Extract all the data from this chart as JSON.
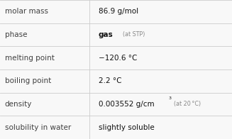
{
  "rows": [
    {
      "label": "molar mass",
      "type": "simple",
      "value": "86.9 g/mol"
    },
    {
      "label": "phase",
      "type": "phase",
      "value": "gas",
      "note": "(at STP)"
    },
    {
      "label": "melting point",
      "type": "simple",
      "value": "−120.6 °C"
    },
    {
      "label": "boiling point",
      "type": "simple",
      "value": "2.2 °C"
    },
    {
      "label": "density",
      "type": "density",
      "value": "0.003552 g/cm",
      "note": "(at 20 °C)"
    },
    {
      "label": "solubility in water",
      "type": "simple",
      "value": "slightly soluble"
    }
  ],
  "bg_color": "#f8f8f8",
  "line_color": "#cccccc",
  "label_color": "#404040",
  "value_color": "#111111",
  "note_color": "#888888",
  "col_split": 0.385,
  "label_fontsize": 7.5,
  "value_fontsize": 7.5,
  "note_fontsize": 5.8
}
